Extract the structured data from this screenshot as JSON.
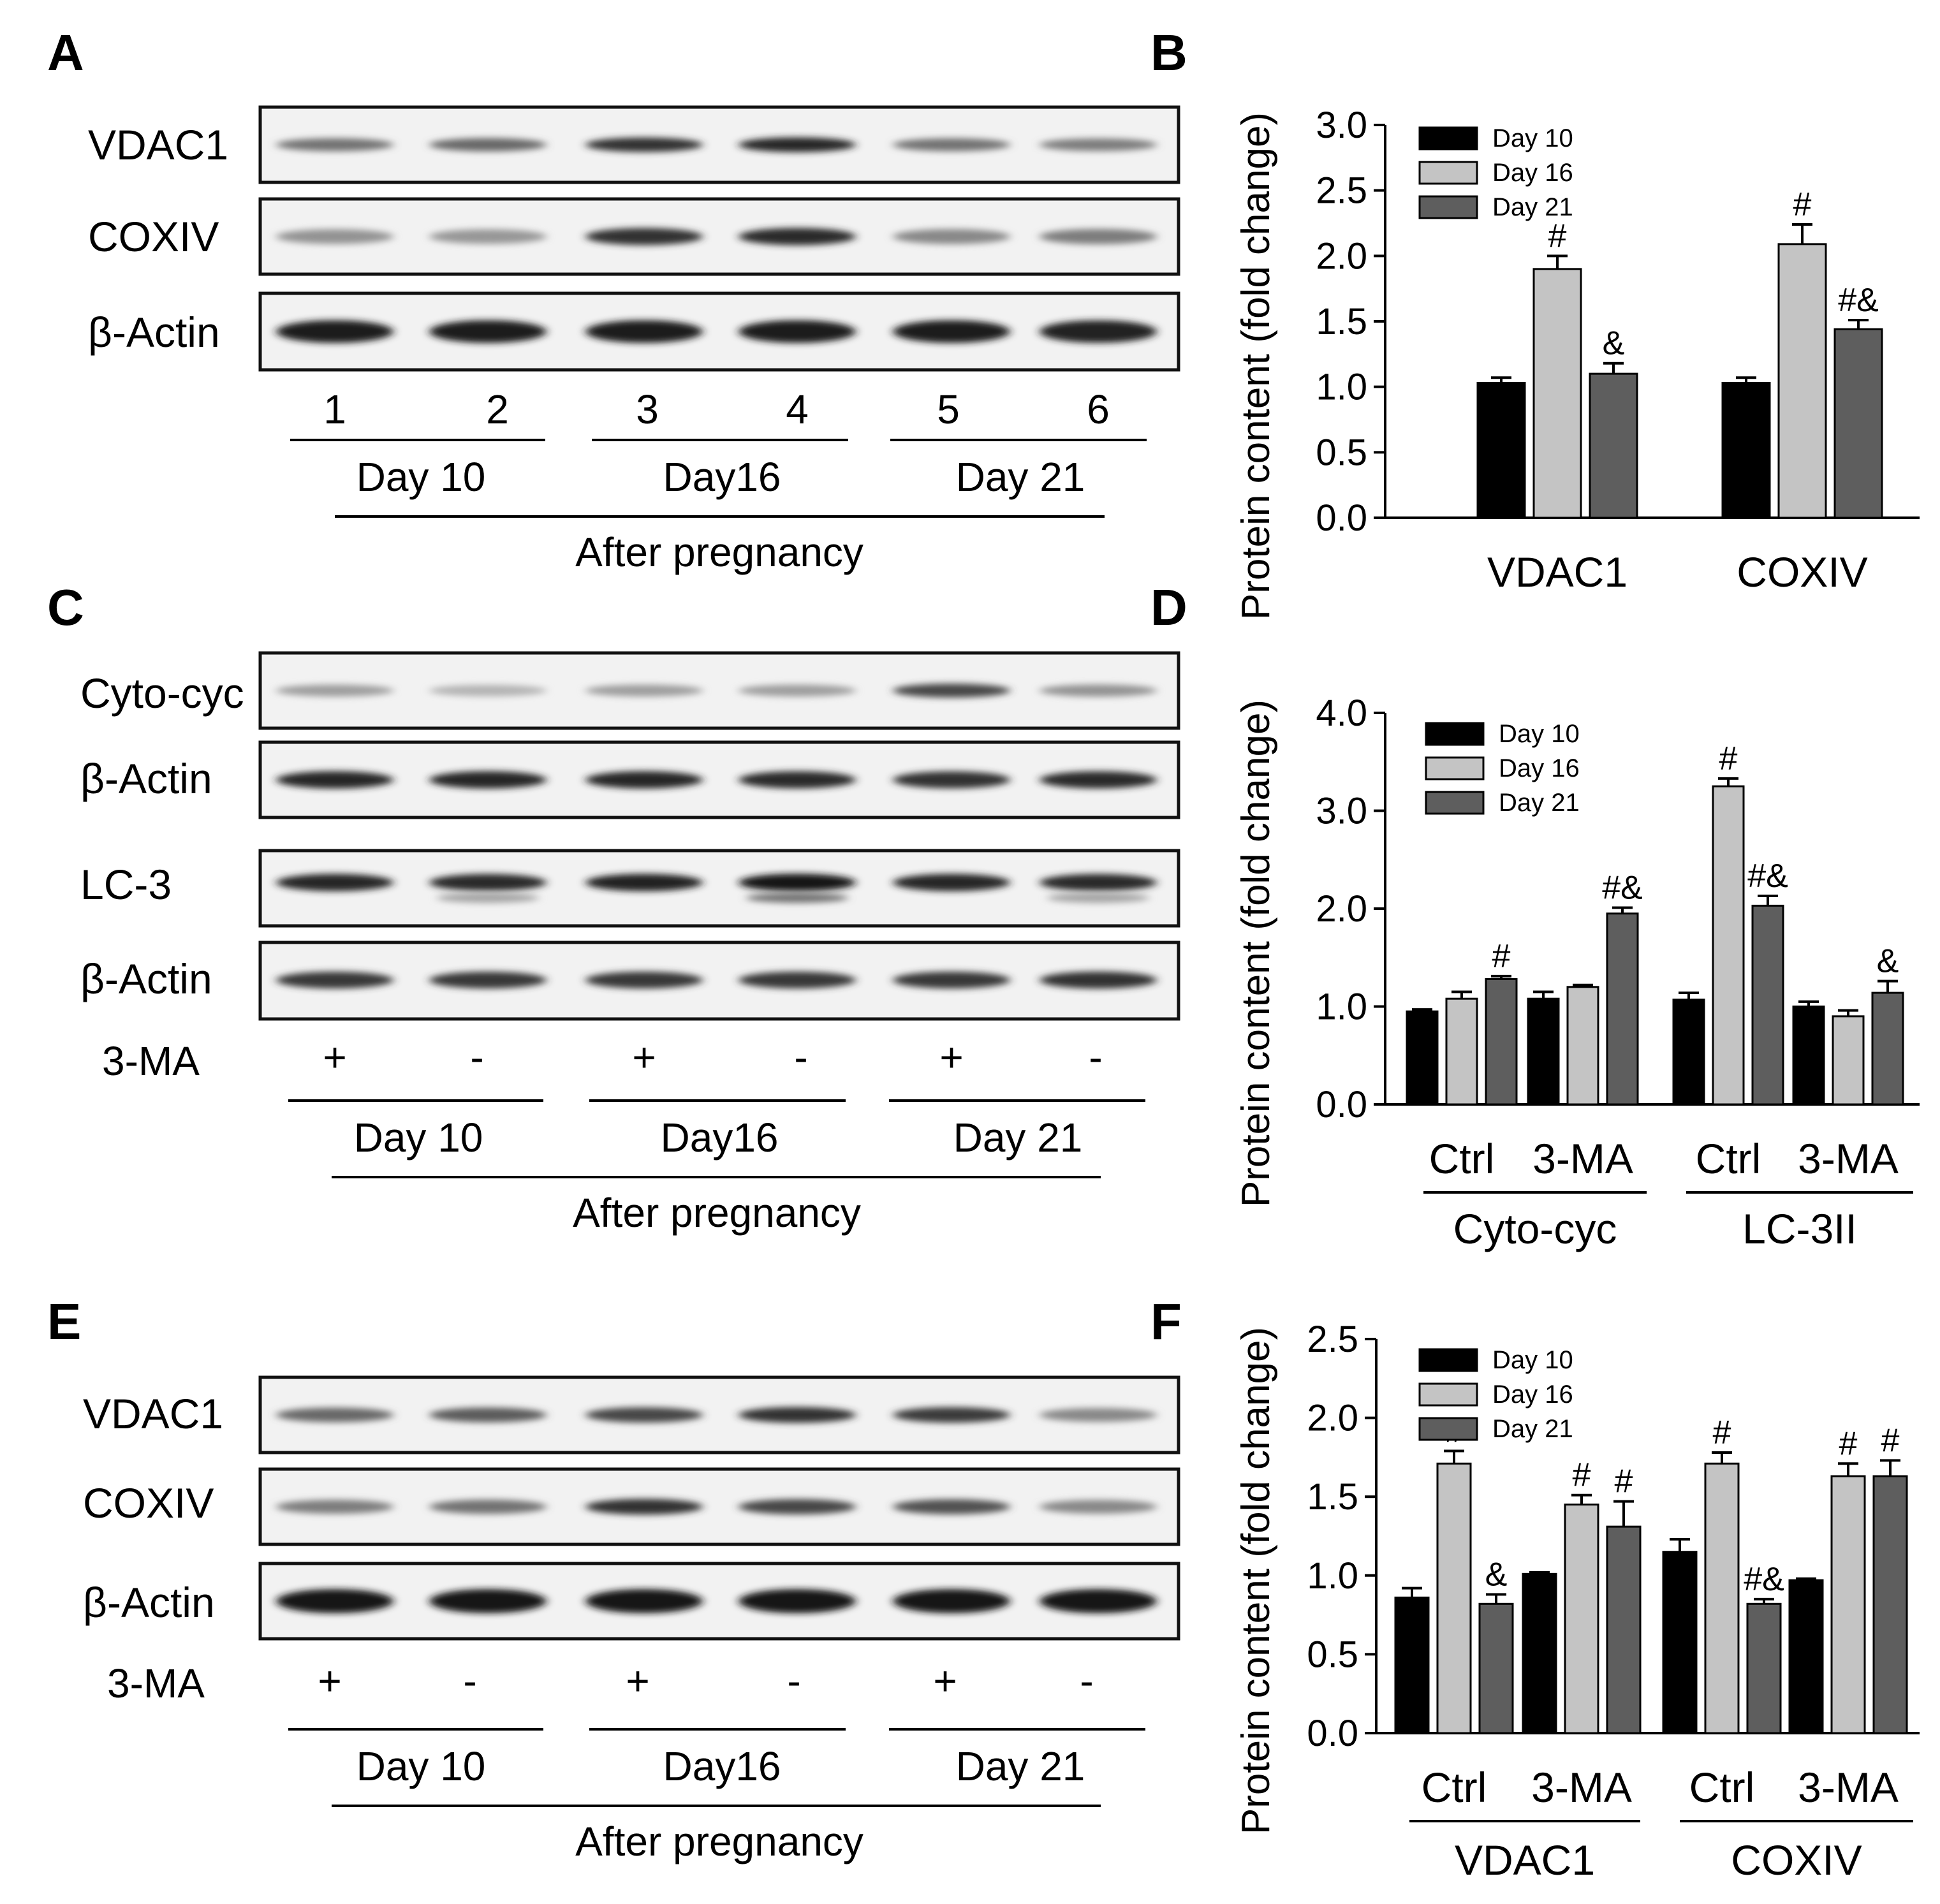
{
  "panels": {
    "A": "A",
    "B": "B",
    "C": "C",
    "D": "D",
    "E": "E",
    "F": "F"
  },
  "blots": {
    "A": {
      "rows": [
        {
          "label": "VDAC1",
          "intensity": [
            0.55,
            0.6,
            0.85,
            0.9,
            0.55,
            0.5
          ]
        },
        {
          "label": "COXIV",
          "intensity": [
            0.4,
            0.38,
            0.85,
            0.88,
            0.45,
            0.5
          ]
        },
        {
          "label": "β-Actin",
          "intensity": [
            0.95,
            0.95,
            0.95,
            0.95,
            0.95,
            0.92
          ]
        }
      ],
      "lane_labels": [
        "1",
        "2",
        "3",
        "4",
        "5",
        "6"
      ],
      "groups": [
        "Day 10",
        "Day16",
        "Day 21"
      ],
      "footer": "After pregnancy"
    },
    "C": {
      "rows": [
        {
          "label": "Cyto-cyc",
          "intensity": [
            0.35,
            0.25,
            0.35,
            0.35,
            0.75,
            0.4
          ]
        },
        {
          "label": "β-Actin",
          "intensity": [
            0.9,
            0.9,
            0.9,
            0.88,
            0.85,
            0.88
          ]
        },
        {
          "label": "LC-3",
          "intensity": [
            0.9,
            0.88,
            0.92,
            0.98,
            0.9,
            0.88
          ]
        },
        {
          "label": "β-Actin",
          "intensity": [
            0.82,
            0.82,
            0.82,
            0.82,
            0.82,
            0.85
          ]
        }
      ],
      "treatment_label": "3-MA",
      "treatment_signs": [
        "+",
        "-",
        "+",
        "-",
        "+",
        "-"
      ],
      "groups": [
        "Day 10",
        "Day16",
        "Day 21"
      ],
      "footer": "After pregnancy"
    },
    "E": {
      "rows": [
        {
          "label": "VDAC1",
          "intensity": [
            0.6,
            0.65,
            0.75,
            0.85,
            0.8,
            0.45
          ]
        },
        {
          "label": "COXIV",
          "intensity": [
            0.5,
            0.55,
            0.85,
            0.75,
            0.7,
            0.45
          ]
        },
        {
          "label": "β-Actin",
          "intensity": [
            0.97,
            0.97,
            0.97,
            0.97,
            0.97,
            0.97
          ]
        }
      ],
      "treatment_label": "3-MA",
      "treatment_signs": [
        "+",
        "-",
        "+",
        "-",
        "+",
        "-"
      ],
      "groups": [
        "Day 10",
        "Day16",
        "Day 21"
      ],
      "footer": "After pregnancy"
    }
  },
  "chart_data": [
    {
      "panel": "B",
      "type": "bar",
      "ylabel": "Protein content (fold change)",
      "ylim": [
        0,
        3.0
      ],
      "yticks": [
        "0.0",
        "0.5",
        "1.0",
        "1.5",
        "2.0",
        "2.5",
        "3.0"
      ],
      "categories": [
        "VDAC1",
        "COXIV"
      ],
      "series": [
        {
          "name": "Day 10",
          "color": "#000000",
          "values": [
            1.03,
            1.03
          ],
          "errors": [
            0.04,
            0.04
          ],
          "marks": [
            "",
            ""
          ]
        },
        {
          "name": "Day 16",
          "color": "#c4c4c4",
          "values": [
            1.9,
            2.09
          ],
          "errors": [
            0.1,
            0.15
          ],
          "marks": [
            "#",
            "#"
          ]
        },
        {
          "name": "Day 21",
          "color": "#5e5e5e",
          "values": [
            1.1,
            1.44
          ],
          "errors": [
            0.08,
            0.07
          ],
          "marks": [
            "&",
            "#&"
          ]
        }
      ],
      "legend": "top-left"
    },
    {
      "panel": "D",
      "type": "bar",
      "ylabel": "Protein content (fold change)",
      "ylim": [
        0,
        4.0
      ],
      "yticks": [
        "0.0",
        "1.0",
        "2.0",
        "3.0",
        "4.0"
      ],
      "categories": [
        "Ctrl",
        "3-MA",
        "Ctrl",
        "3-MA"
      ],
      "groups": [
        {
          "label": "Cyto-cyc",
          "span": [
            0,
            1
          ]
        },
        {
          "label": "LC-3II",
          "span": [
            2,
            3
          ]
        }
      ],
      "series": [
        {
          "name": "Day 10",
          "color": "#000000",
          "values": [
            0.95,
            1.08,
            1.07,
            1.0
          ],
          "errors": [
            0.02,
            0.07,
            0.07,
            0.05
          ],
          "marks": [
            "",
            "",
            "",
            ""
          ]
        },
        {
          "name": "Day 16",
          "color": "#c4c4c4",
          "values": [
            1.08,
            1.2,
            3.25,
            0.9
          ],
          "errors": [
            0.07,
            0.02,
            0.08,
            0.06
          ],
          "marks": [
            "",
            "",
            "#",
            ""
          ]
        },
        {
          "name": "Day 21",
          "color": "#5e5e5e",
          "values": [
            1.28,
            1.95,
            2.03,
            1.14
          ],
          "errors": [
            0.03,
            0.06,
            0.1,
            0.12
          ],
          "marks": [
            "#",
            "#&",
            "#&",
            "&"
          ]
        }
      ],
      "legend": "top-left"
    },
    {
      "panel": "F",
      "type": "bar",
      "ylabel": "Protein content (fold change)",
      "ylim": [
        0,
        2.5
      ],
      "yticks": [
        "0.0",
        "0.5",
        "1.0",
        "1.5",
        "2.0",
        "2.5"
      ],
      "categories": [
        "Ctrl",
        "3-MA",
        "Ctrl",
        "3-MA"
      ],
      "groups": [
        {
          "label": "VDAC1",
          "span": [
            0,
            1
          ]
        },
        {
          "label": "COXIV",
          "span": [
            2,
            3
          ]
        }
      ],
      "series": [
        {
          "name": "Day 10",
          "color": "#000000",
          "values": [
            0.86,
            1.01,
            1.15,
            0.97
          ],
          "errors": [
            0.06,
            0.01,
            0.08,
            0.01
          ],
          "marks": [
            "",
            "",
            "",
            ""
          ]
        },
        {
          "name": "Day 16",
          "color": "#c4c4c4",
          "values": [
            1.71,
            1.45,
            1.71,
            1.63
          ],
          "errors": [
            0.08,
            0.06,
            0.07,
            0.08
          ],
          "marks": [
            "#",
            "#",
            "#",
            "#"
          ]
        },
        {
          "name": "Day 21",
          "color": "#5e5e5e",
          "values": [
            0.82,
            1.31,
            0.82,
            1.63
          ],
          "errors": [
            0.06,
            0.16,
            0.03,
            0.1
          ],
          "marks": [
            "&",
            "#",
            "#&",
            "#"
          ]
        }
      ],
      "legend": "top-left"
    }
  ]
}
